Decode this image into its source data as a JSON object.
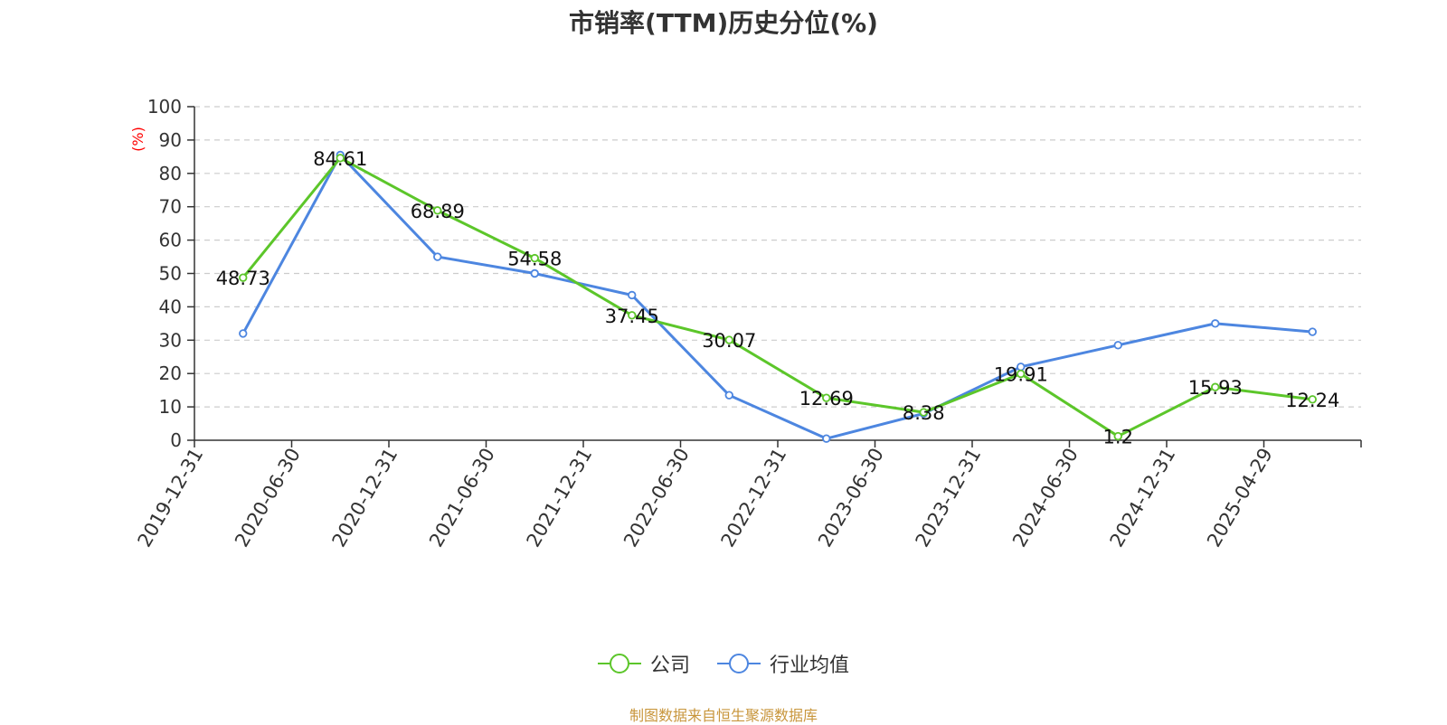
{
  "title": "市销率(TTM)历史分位(%)",
  "source": "制图数据来自恒生聚源数据库",
  "colors": {
    "company": "#5cc62a",
    "industry": "#4d86e0",
    "ylabel": "#ff0000"
  },
  "chart_data": {
    "type": "line",
    "title": "市销率(TTM)历史分位(%)",
    "ylabel": "(%)",
    "xlabel": "",
    "ylim": [
      0,
      100
    ],
    "yticks": [
      0,
      10,
      20,
      30,
      40,
      50,
      60,
      70,
      80,
      90,
      100
    ],
    "grid": true,
    "legend_position": "bottom",
    "categories": [
      "2019-12-31",
      "2020-06-30",
      "2020-12-31",
      "2021-06-30",
      "2021-12-31",
      "2022-06-30",
      "2022-12-31",
      "2023-06-30",
      "2023-12-31",
      "2024-06-30",
      "2024-12-31",
      "2025-04-29"
    ],
    "series": [
      {
        "name": "公司",
        "values": [
          48.73,
          84.61,
          68.89,
          54.58,
          37.45,
          30.07,
          12.69,
          8.38,
          19.91,
          1.2,
          15.93,
          12.24
        ],
        "show_labels": true
      },
      {
        "name": "行业均值",
        "values": [
          32,
          85.5,
          55,
          50,
          43.5,
          13.5,
          0.5,
          8,
          22,
          28.5,
          35,
          32.5
        ],
        "show_labels": false
      }
    ]
  }
}
